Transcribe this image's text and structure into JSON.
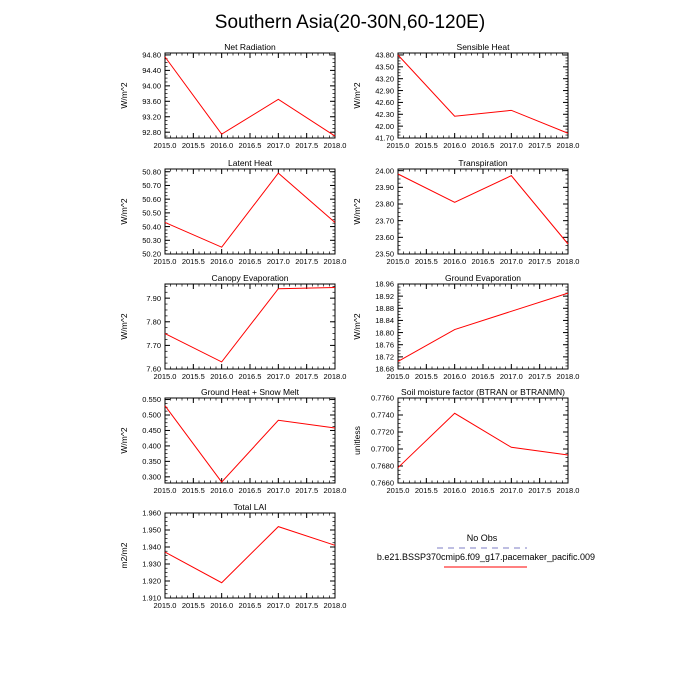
{
  "title": "Southern Asia(20-30N,60-120E)",
  "colors": {
    "series": "#ff0000",
    "no_obs": "#a9a9d9",
    "axis": "#000000"
  },
  "legend": {
    "entries": [
      {
        "label": "No Obs",
        "style": "dashed",
        "color": "#a9a9d9"
      },
      {
        "label": "b.e21.BSSP370cmip6.f09_g17.pacemaker_pacific.009",
        "style": "solid",
        "color": "#ff0000"
      }
    ]
  },
  "chart_data": [
    {
      "type": "line",
      "title": "Net Radiation",
      "ylabel": "W/m^2",
      "x": [
        2015,
        2016,
        2017,
        2018
      ],
      "values": [
        94.75,
        92.75,
        93.65,
        92.7
      ],
      "xlim": [
        2015,
        2018
      ],
      "ylim": [
        92.65,
        94.85
      ],
      "xticks": [
        "2015.0",
        "2015.5",
        "2016.0",
        "2016.5",
        "2017.0",
        "2017.5",
        "2018.0"
      ],
      "yticks": [
        "92.80",
        "93.20",
        "93.60",
        "94.00",
        "94.40",
        "94.80"
      ]
    },
    {
      "type": "line",
      "title": "Sensible Heat",
      "ylabel": "W/m^2",
      "x": [
        2015,
        2016,
        2017,
        2018
      ],
      "values": [
        43.8,
        42.25,
        42.4,
        41.82
      ],
      "xlim": [
        2015,
        2018
      ],
      "ylim": [
        41.7,
        43.85
      ],
      "xticks": [
        "2015.0",
        "2015.5",
        "2016.0",
        "2016.5",
        "2017.0",
        "2017.5",
        "2018.0"
      ],
      "yticks": [
        "41.70",
        "42.00",
        "42.30",
        "42.60",
        "42.90",
        "43.20",
        "43.50",
        "43.80"
      ]
    },
    {
      "type": "line",
      "title": "Latent Heat",
      "ylabel": "W/m^2",
      "x": [
        2015,
        2016,
        2017,
        2018
      ],
      "values": [
        50.43,
        50.25,
        50.79,
        50.43
      ],
      "xlim": [
        2015,
        2018
      ],
      "ylim": [
        50.2,
        50.82
      ],
      "xticks": [
        "2015.0",
        "2015.5",
        "2016.0",
        "2016.5",
        "2017.0",
        "2017.5",
        "2018.0"
      ],
      "yticks": [
        "50.20",
        "50.30",
        "50.40",
        "50.50",
        "50.60",
        "50.70",
        "50.80"
      ]
    },
    {
      "type": "line",
      "title": "Transpiration",
      "ylabel": "W/m^2",
      "x": [
        2015,
        2016,
        2017,
        2018
      ],
      "values": [
        23.98,
        23.81,
        23.97,
        23.56
      ],
      "xlim": [
        2015,
        2018
      ],
      "ylim": [
        23.5,
        24.01
      ],
      "xticks": [
        "2015.0",
        "2015.5",
        "2016.0",
        "2016.5",
        "2017.0",
        "2017.5",
        "2018.0"
      ],
      "yticks": [
        "23.50",
        "23.60",
        "23.70",
        "23.80",
        "23.90",
        "24.00"
      ]
    },
    {
      "type": "line",
      "title": "Canopy Evaporation",
      "ylabel": "W/m^2",
      "x": [
        2015,
        2016,
        2017,
        2018
      ],
      "values": [
        7.75,
        7.63,
        7.94,
        7.945
      ],
      "xlim": [
        2015,
        2018
      ],
      "ylim": [
        7.6,
        7.96
      ],
      "xticks": [
        "2015.0",
        "2015.5",
        "2016.0",
        "2016.5",
        "2017.0",
        "2017.5",
        "2018.0"
      ],
      "yticks": [
        "7.60",
        "7.70",
        "7.80",
        "7.90"
      ]
    },
    {
      "type": "line",
      "title": "Ground Evaporation",
      "ylabel": "W/m^2",
      "x": [
        2015,
        2016,
        2017,
        2018
      ],
      "values": [
        18.705,
        18.81,
        18.87,
        18.93
      ],
      "xlim": [
        2015,
        2018
      ],
      "ylim": [
        18.68,
        18.96
      ],
      "xticks": [
        "2015.0",
        "2015.5",
        "2016.0",
        "2016.5",
        "2017.0",
        "2017.5",
        "2018.0"
      ],
      "yticks": [
        "18.68",
        "18.72",
        "18.76",
        "18.80",
        "18.84",
        "18.88",
        "18.92",
        "18.96"
      ]
    },
    {
      "type": "line",
      "title": "Ground Heat + Snow Melt",
      "ylabel": "W/m^2",
      "x": [
        2015,
        2016,
        2017,
        2018
      ],
      "values": [
        0.53,
        0.283,
        0.483,
        0.458
      ],
      "xlim": [
        2015,
        2018
      ],
      "ylim": [
        0.28,
        0.555
      ],
      "xticks": [
        "2015.0",
        "2015.5",
        "2016.0",
        "2016.5",
        "2017.0",
        "2017.5",
        "2018.0"
      ],
      "yticks": [
        "0.300",
        "0.350",
        "0.400",
        "0.450",
        "0.500",
        "0.550"
      ]
    },
    {
      "type": "line",
      "title": "Soil moisture factor (BTRAN or BTRANMN)",
      "ylabel": "unitless",
      "x": [
        2015,
        2016,
        2017,
        2018
      ],
      "values": [
        0.7678,
        0.7742,
        0.7702,
        0.7693
      ],
      "xlim": [
        2015,
        2018
      ],
      "ylim": [
        0.766,
        0.776
      ],
      "xticks": [
        "2015.0",
        "2015.5",
        "2016.0",
        "2016.5",
        "2017.0",
        "2017.5",
        "2018.0"
      ],
      "yticks": [
        "0.7660",
        "0.7680",
        "0.7700",
        "0.7720",
        "0.7740",
        "0.7760"
      ]
    },
    {
      "type": "line",
      "title": "Total LAI",
      "ylabel": "m2/m2",
      "x": [
        2015,
        2016,
        2017,
        2018
      ],
      "values": [
        1.937,
        1.919,
        1.952,
        1.941
      ],
      "xlim": [
        2015,
        2018
      ],
      "ylim": [
        1.91,
        1.96
      ],
      "xticks": [
        "2015.0",
        "2015.5",
        "2016.0",
        "2016.5",
        "2017.0",
        "2017.5",
        "2018.0"
      ],
      "yticks": [
        "1.910",
        "1.920",
        "1.930",
        "1.940",
        "1.950",
        "1.960"
      ]
    }
  ]
}
